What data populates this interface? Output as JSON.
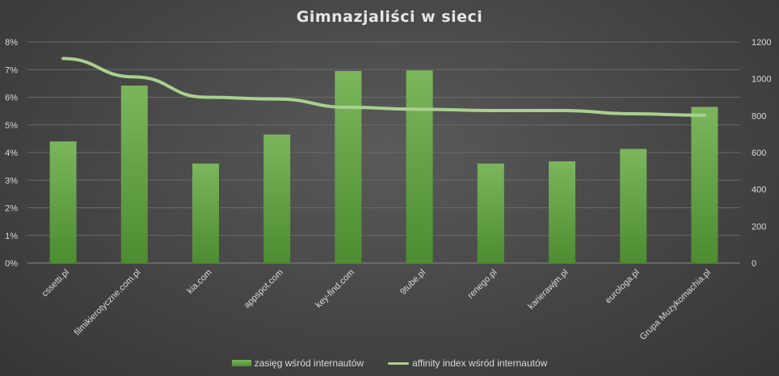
{
  "chart_data": {
    "type": "bar",
    "title": "Gimnazjaliści w sieci",
    "categories": [
      "cssetti.pl",
      "filmikierotyczne.com.pl",
      "kia.com",
      "appspot.com",
      "key-find.com",
      "9tube.pl",
      "renego.pl",
      "karierawjm.pl",
      "eurologa.pl",
      "Grupa Muzykomachia.pl"
    ],
    "left_axis": {
      "ylim": [
        0,
        8
      ],
      "ticks": [
        "0%",
        "1%",
        "2%",
        "3%",
        "4%",
        "5%",
        "6%",
        "7%",
        "8%"
      ]
    },
    "right_axis": {
      "ylim": [
        0,
        1200
      ],
      "ticks": [
        "0",
        "200",
        "400",
        "600",
        "800",
        "1000",
        "1200"
      ]
    },
    "series": [
      {
        "name": "zasięg wśród internautów",
        "type": "bar",
        "axis": "left",
        "color": "#5e9e3e",
        "values": [
          4.4,
          6.42,
          3.6,
          4.65,
          6.95,
          6.97,
          3.6,
          3.68,
          4.13,
          5.65
        ]
      },
      {
        "name": "affinity index wśród internautów",
        "type": "line",
        "axis": "right",
        "color": "#a9d08e",
        "values": [
          1110,
          1010,
          900,
          890,
          845,
          835,
          828,
          828,
          810,
          802
        ]
      }
    ],
    "grid": true,
    "legend_position": "bottom"
  }
}
